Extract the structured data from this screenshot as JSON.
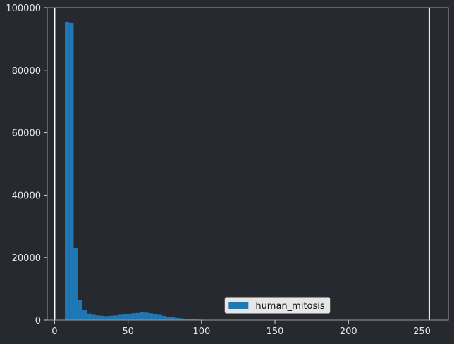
{
  "chart_data": {
    "type": "bar",
    "title": "",
    "xlabel": "",
    "ylabel": "",
    "xlim": [
      -5,
      268
    ],
    "ylim": [
      0,
      100000
    ],
    "x_ticks": [
      0,
      50,
      100,
      150,
      200,
      250
    ],
    "x_tick_labels": [
      "0",
      "50",
      "100",
      "150",
      "200",
      "250"
    ],
    "y_ticks": [
      0,
      20000,
      40000,
      60000,
      80000,
      100000
    ],
    "y_tick_labels": [
      "0",
      "20000",
      "40000",
      "60000",
      "80000",
      "100000"
    ],
    "grid": false,
    "legend": {
      "placement": "lower-center"
    },
    "vertical_lines": [
      0,
      255
    ],
    "series": [
      {
        "name": "human_mitosis",
        "color": "#1f77b4",
        "bins": [
          {
            "x0": 7,
            "x1": 10,
            "value": 95500
          },
          {
            "x0": 10,
            "x1": 13,
            "value": 95200
          },
          {
            "x0": 13,
            "x1": 16,
            "value": 23000
          },
          {
            "x0": 16,
            "x1": 19,
            "value": 6500
          },
          {
            "x0": 19,
            "x1": 22,
            "value": 3200
          },
          {
            "x0": 22,
            "x1": 25,
            "value": 2100
          },
          {
            "x0": 25,
            "x1": 28,
            "value": 1700
          },
          {
            "x0": 28,
            "x1": 31,
            "value": 1500
          },
          {
            "x0": 31,
            "x1": 34,
            "value": 1400
          },
          {
            "x0": 34,
            "x1": 37,
            "value": 1300
          },
          {
            "x0": 37,
            "x1": 40,
            "value": 1400
          },
          {
            "x0": 40,
            "x1": 43,
            "value": 1500
          },
          {
            "x0": 43,
            "x1": 46,
            "value": 1700
          },
          {
            "x0": 46,
            "x1": 49,
            "value": 1900
          },
          {
            "x0": 49,
            "x1": 52,
            "value": 2000
          },
          {
            "x0": 52,
            "x1": 55,
            "value": 2200
          },
          {
            "x0": 55,
            "x1": 58,
            "value": 2300
          },
          {
            "x0": 58,
            "x1": 61,
            "value": 2500
          },
          {
            "x0": 61,
            "x1": 64,
            "value": 2400
          },
          {
            "x0": 64,
            "x1": 67,
            "value": 2200
          },
          {
            "x0": 67,
            "x1": 70,
            "value": 1900
          },
          {
            "x0": 70,
            "x1": 73,
            "value": 1700
          },
          {
            "x0": 73,
            "x1": 76,
            "value": 1400
          },
          {
            "x0": 76,
            "x1": 79,
            "value": 1100
          },
          {
            "x0": 79,
            "x1": 82,
            "value": 900
          },
          {
            "x0": 82,
            "x1": 85,
            "value": 700
          },
          {
            "x0": 85,
            "x1": 88,
            "value": 550
          },
          {
            "x0": 88,
            "x1": 91,
            "value": 420
          },
          {
            "x0": 91,
            "x1": 94,
            "value": 320
          },
          {
            "x0": 94,
            "x1": 97,
            "value": 250
          },
          {
            "x0": 97,
            "x1": 100,
            "value": 180
          },
          {
            "x0": 100,
            "x1": 103,
            "value": 120
          },
          {
            "x0": 103,
            "x1": 106,
            "value": 80
          },
          {
            "x0": 106,
            "x1": 109,
            "value": 40
          }
        ]
      }
    ]
  }
}
